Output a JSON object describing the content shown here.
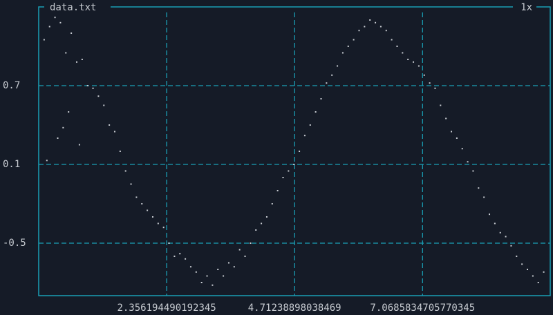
{
  "chart_data": {
    "type": "scatter",
    "title": "data.txt",
    "zoom": "1x",
    "color": "#c8ccd2",
    "grid": true,
    "xlim": [
      0,
      9.42
    ],
    "ylim": [
      -0.9,
      1.3
    ],
    "xticks": [
      2.356194490192345,
      4.71238898038469,
      7.0685834705770345
    ],
    "yticks": [
      0.7,
      0.1,
      -0.5
    ],
    "x": [
      0.1,
      0.15,
      0.2,
      0.3,
      0.35,
      0.4,
      0.45,
      0.5,
      0.55,
      0.6,
      0.7,
      0.75,
      0.8,
      0.9,
      1.0,
      1.1,
      1.2,
      1.3,
      1.4,
      1.5,
      1.6,
      1.7,
      1.8,
      1.9,
      2.0,
      2.1,
      2.2,
      2.3,
      2.4,
      2.5,
      2.6,
      2.7,
      2.8,
      2.9,
      3.0,
      3.1,
      3.2,
      3.3,
      3.4,
      3.5,
      3.6,
      3.7,
      3.8,
      3.9,
      4.0,
      4.1,
      4.2,
      4.3,
      4.4,
      4.5,
      4.6,
      4.7,
      4.8,
      4.9,
      5.0,
      5.1,
      5.2,
      5.3,
      5.4,
      5.5,
      5.6,
      5.7,
      5.8,
      5.9,
      6.0,
      6.1,
      6.2,
      6.3,
      6.4,
      6.5,
      6.6,
      6.7,
      6.8,
      6.9,
      7.0,
      7.1,
      7.2,
      7.3,
      7.4,
      7.5,
      7.6,
      7.7,
      7.8,
      7.9,
      8.0,
      8.1,
      8.2,
      8.3,
      8.4,
      8.5,
      8.6,
      8.7,
      8.8,
      8.9,
      9.0,
      9.1,
      9.2,
      9.3
    ],
    "values": [
      1.05,
      0.13,
      1.15,
      1.22,
      0.3,
      1.18,
      0.38,
      0.95,
      0.5,
      1.1,
      0.88,
      0.25,
      0.9,
      0.7,
      0.68,
      0.62,
      0.55,
      0.4,
      0.35,
      0.2,
      0.05,
      -0.05,
      -0.15,
      -0.2,
      -0.25,
      -0.3,
      -0.35,
      -0.38,
      -0.5,
      -0.6,
      -0.58,
      -0.62,
      -0.68,
      -0.72,
      -0.8,
      -0.75,
      -0.82,
      -0.7,
      -0.75,
      -0.65,
      -0.68,
      -0.55,
      -0.6,
      -0.5,
      -0.4,
      -0.35,
      -0.3,
      -0.2,
      -0.1,
      0.0,
      0.05,
      0.1,
      0.2,
      0.32,
      0.4,
      0.5,
      0.6,
      0.72,
      0.78,
      0.85,
      0.95,
      1.0,
      1.05,
      1.12,
      1.15,
      1.2,
      1.18,
      1.15,
      1.12,
      1.05,
      1.0,
      0.95,
      0.9,
      0.88,
      0.85,
      0.78,
      0.72,
      0.68,
      0.55,
      0.45,
      0.35,
      0.3,
      0.22,
      0.12,
      0.05,
      -0.08,
      -0.15,
      -0.28,
      -0.35,
      -0.42,
      -0.45,
      -0.52,
      -0.6,
      -0.66,
      -0.7,
      -0.75,
      -0.8,
      -0.72
    ]
  }
}
